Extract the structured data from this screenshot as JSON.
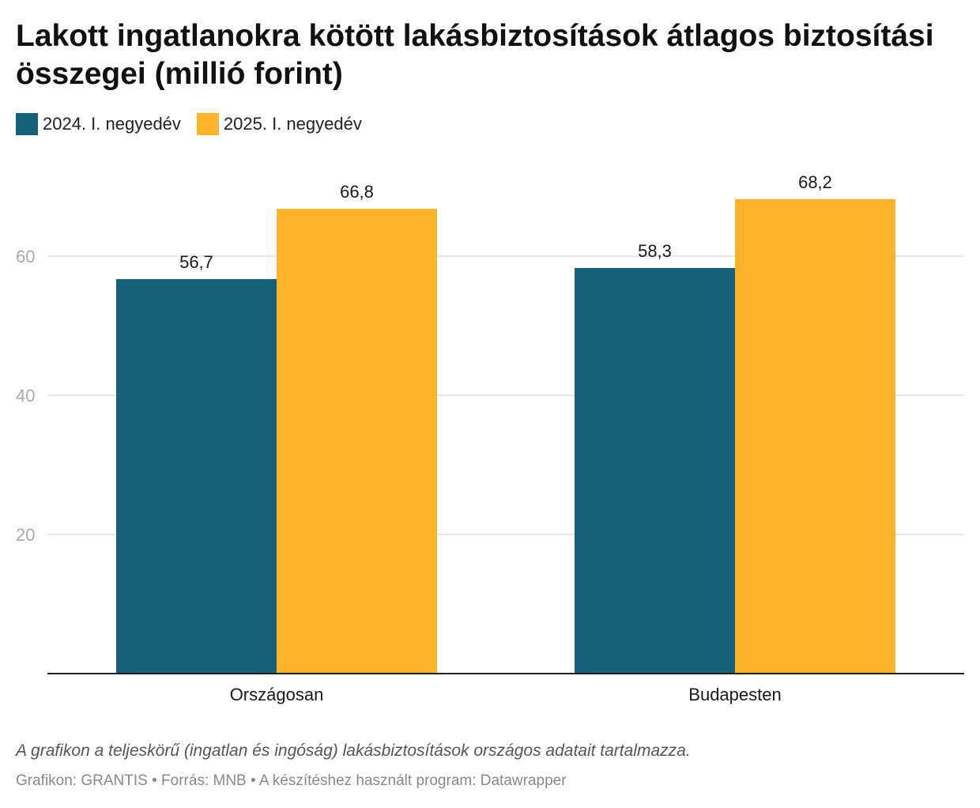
{
  "chart_data": {
    "type": "bar",
    "title": "Lakott ingatlanokra kötött lakásbiztosítások átlagos biztosítási összegei (millió forint)",
    "categories": [
      "Országosan",
      "Budapesten"
    ],
    "series": [
      {
        "name": "2024. I. negyedév",
        "values": [
          56.7,
          58.3
        ],
        "labels": [
          "56,7",
          "58,3"
        ],
        "color": "#17607a"
      },
      {
        "name": "2025. I. negyedév",
        "values": [
          66.8,
          68.2
        ],
        "labels": [
          "66,8",
          "68,2"
        ],
        "color": "#fdb22c"
      }
    ],
    "yticks": [
      20,
      40,
      60
    ],
    "ylim": [
      0,
      75
    ],
    "grid": true,
    "legend_position": "top-left"
  },
  "footer": {
    "note": "A grafikon a teljeskörű (ingatlan és ingóság) lakásbiztosítások országos adatait tartalmazza.",
    "credit_parts": [
      "Grafikon: GRANTIS",
      "Forrás: MNB",
      "A készítéshez használt program: Datawrapper"
    ],
    "separator": "•"
  }
}
